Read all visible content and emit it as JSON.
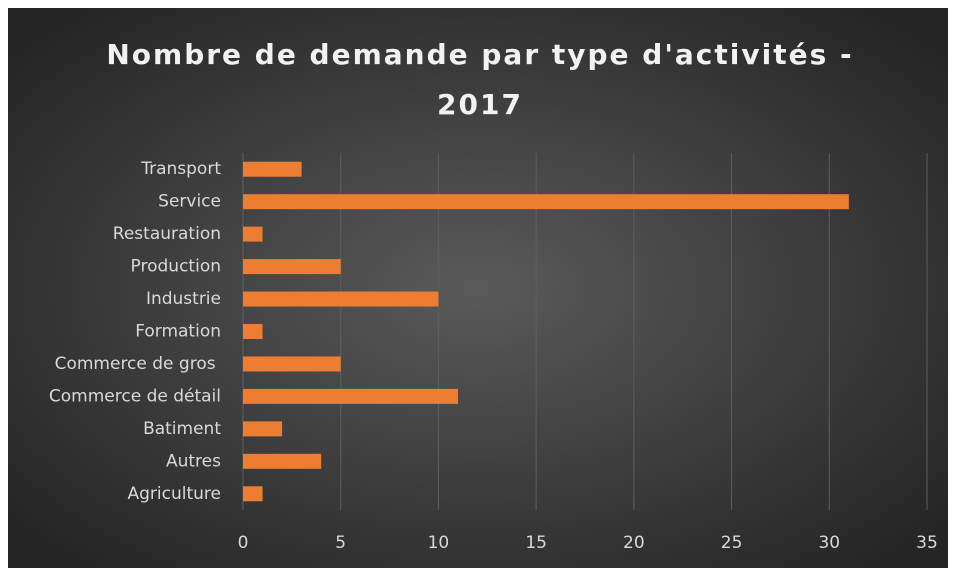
{
  "chart_data": {
    "type": "hbar",
    "title": "Nombre de demande par type d'activités - 2017",
    "categories": [
      "Transport",
      "Service",
      "Restauration",
      "Production",
      "Industrie",
      "Formation",
      "Commerce de gros ",
      "Commerce de détail",
      "Batiment",
      "Autres",
      "Agriculture"
    ],
    "values": [
      3,
      31,
      1,
      5,
      10,
      1,
      5,
      11,
      2,
      4,
      1
    ],
    "color": "#ed7d31",
    "xlim": [
      0,
      35
    ],
    "xticks": [
      0,
      5,
      10,
      15,
      20,
      25,
      30,
      35
    ],
    "grid": true
  }
}
